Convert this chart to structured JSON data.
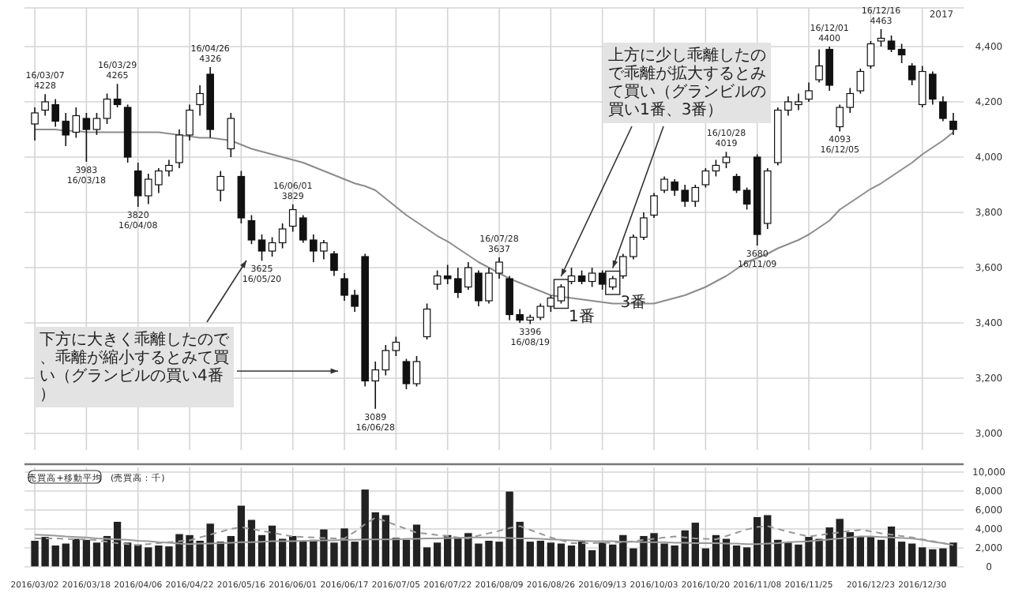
{
  "chart_data": [
    {
      "type": "candlestick",
      "categories": [
        "2016/03/02",
        null,
        null,
        null,
        null,
        "2016/03/18",
        null,
        null,
        null,
        null,
        "2016/04/06",
        null,
        null,
        null,
        null,
        "2016/04/22",
        null,
        null,
        null,
        null,
        "2016/05/16",
        null,
        null,
        null,
        null,
        "2016/06/01",
        null,
        null,
        null,
        null,
        "2016/06/17",
        null,
        null,
        null,
        null,
        "2016/07/05",
        null,
        null,
        null,
        null,
        "2016/07/22",
        null,
        null,
        null,
        null,
        "2016/08/09",
        null,
        null,
        null,
        null,
        "2016/08/26",
        null,
        null,
        null,
        null,
        "2016/09/13",
        null,
        null,
        null,
        null,
        "2016/10/03",
        null,
        null,
        null,
        null,
        "2016/10/20",
        null,
        null,
        null,
        null,
        "2016/11/08",
        null,
        null,
        null,
        null,
        "2016/11/25",
        null,
        null,
        null,
        null,
        null,
        "2016/12/23",
        null,
        null,
        null,
        null,
        "2016/12/30",
        null,
        null,
        null
      ],
      "ohlc": [
        [
          4120,
          4180,
          4060,
          4160
        ],
        [
          4170,
          4228,
          4150,
          4200
        ],
        [
          4190,
          4210,
          4110,
          4130
        ],
        [
          4130,
          4160,
          4040,
          4080
        ],
        [
          4090,
          4180,
          4070,
          4150
        ],
        [
          4140,
          4160,
          3983,
          4100
        ],
        [
          4100,
          4160,
          4080,
          4140
        ],
        [
          4140,
          4230,
          4120,
          4210
        ],
        [
          4210,
          4265,
          4180,
          4190
        ],
        [
          4180,
          4190,
          3980,
          4000
        ],
        [
          3950,
          3980,
          3820,
          3860
        ],
        [
          3860,
          3940,
          3830,
          3920
        ],
        [
          3900,
          3960,
          3870,
          3950
        ],
        [
          3950,
          3990,
          3930,
          3970
        ],
        [
          3980,
          4100,
          3960,
          4080
        ],
        [
          4080,
          4190,
          4060,
          4170
        ],
        [
          4190,
          4260,
          4150,
          4230
        ],
        [
          4300,
          4326,
          4070,
          4100
        ],
        [
          3880,
          3950,
          3840,
          3930
        ],
        [
          4030,
          4160,
          4000,
          4140
        ],
        [
          3930,
          3950,
          3760,
          3780
        ],
        [
          3770,
          3790,
          3685,
          3700
        ],
        [
          3700,
          3720,
          3625,
          3660
        ],
        [
          3660,
          3710,
          3640,
          3690
        ],
        [
          3690,
          3760,
          3670,
          3740
        ],
        [
          3750,
          3829,
          3730,
          3810
        ],
        [
          3780,
          3790,
          3690,
          3700
        ],
        [
          3700,
          3720,
          3620,
          3660
        ],
        [
          3660,
          3700,
          3630,
          3690
        ],
        [
          3650,
          3660,
          3570,
          3590
        ],
        [
          3560,
          3580,
          3480,
          3500
        ],
        [
          3500,
          3520,
          3440,
          3460
        ],
        [
          3640,
          3650,
          3170,
          3190
        ],
        [
          3190,
          3260,
          3089,
          3230
        ],
        [
          3230,
          3320,
          3210,
          3300
        ],
        [
          3300,
          3350,
          3280,
          3330
        ],
        [
          3260,
          3270,
          3160,
          3180
        ],
        [
          3180,
          3280,
          3170,
          3260
        ],
        [
          3350,
          3470,
          3340,
          3450
        ],
        [
          3540,
          3590,
          3520,
          3570
        ],
        [
          3570,
          3610,
          3540,
          3560
        ],
        [
          3560,
          3600,
          3490,
          3510
        ],
        [
          3530,
          3620,
          3520,
          3600
        ],
        [
          3580,
          3590,
          3460,
          3480
        ],
        [
          3480,
          3600,
          3470,
          3580
        ],
        [
          3580,
          3637,
          3560,
          3620
        ],
        [
          3560,
          3570,
          3410,
          3430
        ],
        [
          3430,
          3450,
          3400,
          3410
        ],
        [
          3410,
          3430,
          3396,
          3420
        ],
        [
          3420,
          3470,
          3410,
          3460
        ],
        [
          3460,
          3500,
          3440,
          3490
        ],
        [
          3480,
          3540,
          3470,
          3530
        ],
        [
          3550,
          3600,
          3540,
          3570
        ],
        [
          3570,
          3590,
          3540,
          3550
        ],
        [
          3550,
          3600,
          3530,
          3580
        ],
        [
          3580,
          3590,
          3520,
          3540
        ],
        [
          3530,
          3570,
          3520,
          3560
        ],
        [
          3570,
          3650,
          3560,
          3640
        ],
        [
          3640,
          3720,
          3630,
          3710
        ],
        [
          3710,
          3800,
          3700,
          3780
        ],
        [
          3790,
          3870,
          3780,
          3860
        ],
        [
          3880,
          3930,
          3870,
          3920
        ],
        [
          3910,
          3920,
          3860,
          3880
        ],
        [
          3880,
          3900,
          3820,
          3840
        ],
        [
          3840,
          3900,
          3820,
          3890
        ],
        [
          3900,
          3960,
          3890,
          3950
        ],
        [
          3950,
          3990,
          3930,
          3970
        ],
        [
          3980,
          4019,
          3960,
          4000
        ],
        [
          3930,
          3940,
          3870,
          3880
        ],
        [
          3880,
          3890,
          3810,
          3830
        ],
        [
          4000,
          4010,
          3680,
          3720
        ],
        [
          3760,
          3960,
          3740,
          3950
        ],
        [
          3980,
          4180,
          3970,
          4170
        ],
        [
          4170,
          4220,
          4150,
          4200
        ],
        [
          4190,
          4230,
          4170,
          4200
        ],
        [
          4210,
          4270,
          4200,
          4240
        ],
        [
          4280,
          4390,
          4270,
          4330
        ],
        [
          4390,
          4400,
          4240,
          4260
        ],
        [
          4110,
          4190,
          4093,
          4180
        ],
        [
          4180,
          4250,
          4160,
          4230
        ],
        [
          4240,
          4320,
          4230,
          4310
        ],
        [
          4330,
          4420,
          4320,
          4410
        ],
        [
          4420,
          4463,
          4400,
          4430
        ],
        [
          4420,
          4440,
          4380,
          4390
        ],
        [
          4390,
          4410,
          4340,
          4370
        ],
        [
          4330,
          4340,
          4260,
          4280
        ],
        [
          4190,
          4330,
          4180,
          4310
        ],
        [
          4300,
          4310,
          4190,
          4210
        ],
        [
          4200,
          4220,
          4130,
          4140
        ],
        [
          4130,
          4160,
          4080,
          4100
        ]
      ],
      "series": [
        {
          "type": "line",
          "color": "#8c8c8c",
          "values": [
            4100,
            4100,
            4100,
            4095,
            4095,
            4090,
            4090,
            4090,
            4090,
            4090,
            4090,
            4090,
            4090,
            4085,
            4080,
            4075,
            4070,
            4070,
            4065,
            4060,
            4045,
            4030,
            4020,
            4010,
            4000,
            3990,
            3980,
            3965,
            3950,
            3935,
            3920,
            3905,
            3895,
            3880,
            3850,
            3820,
            3790,
            3765,
            3740,
            3715,
            3695,
            3670,
            3645,
            3620,
            3600,
            3580,
            3560,
            3545,
            3530,
            3515,
            3500,
            3495,
            3490,
            3485,
            3480,
            3475,
            3470,
            3470,
            3470,
            3470,
            3470,
            3480,
            3490,
            3500,
            3515,
            3530,
            3550,
            3570,
            3595,
            3620,
            3635,
            3650,
            3670,
            3685,
            3700,
            3720,
            3745,
            3770,
            3810,
            3835,
            3860,
            3885,
            3905,
            3930,
            3955,
            3980,
            4010,
            4035,
            4060,
            4090
          ]
        }
      ],
      "ylim": [
        2940,
        4540
      ],
      "yticks": [
        {
          "value": 3000,
          "label": "3,000"
        },
        {
          "value": 3200,
          "label": "3,200"
        },
        {
          "value": 3400,
          "label": "3,400"
        },
        {
          "value": 3600,
          "label": "3,600"
        },
        {
          "value": 3800,
          "label": "3,800"
        },
        {
          "value": 4000,
          "label": "4,000"
        },
        {
          "value": 4200,
          "label": "4,200"
        },
        {
          "value": 4400,
          "label": "4,400"
        }
      ],
      "tick_labels": "y",
      "grid": true,
      "annotations": [
        {
          "text": "16/03/07",
          "y": 4228
        },
        {
          "text": "4228",
          "y": 4228
        },
        {
          "text": "3983",
          "y": 3983
        },
        {
          "text": "16/03/18",
          "y": 3983
        },
        {
          "text": "16/03/29",
          "y": 4265
        },
        {
          "text": "4265",
          "y": 4265
        },
        {
          "text": "3820",
          "y": 3820
        },
        {
          "text": "16/04/08",
          "y": 3820
        },
        {
          "text": "16/04/26",
          "y": 4326
        },
        {
          "text": "4326",
          "y": 4326
        },
        {
          "text": "3625",
          "y": 3625
        },
        {
          "text": "16/05/20",
          "y": 3625
        },
        {
          "text": "16/06/01",
          "y": 3829
        },
        {
          "text": "3829",
          "y": 3829
        },
        {
          "text": "3089",
          "y": 3089
        },
        {
          "text": "16/06/28",
          "y": 3089
        },
        {
          "text": "16/07/28",
          "y": 3637
        },
        {
          "text": "3637",
          "y": 3637
        },
        {
          "text": "3396",
          "y": 3396
        },
        {
          "text": "16/08/19",
          "y": 3396
        },
        {
          "text": "16/10/28",
          "y": 4019
        },
        {
          "text": "4019",
          "y": 4019
        },
        {
          "text": "3680",
          "y": 3680
        },
        {
          "text": "16/11/09",
          "y": 3680
        },
        {
          "text": "16/12/01",
          "y": 4400
        },
        {
          "text": "4400",
          "y": 4400
        },
        {
          "text": "4093",
          "y": 4093
        },
        {
          "text": "16/12/05",
          "y": 4093
        },
        {
          "text": "16/12/16",
          "y": 4463
        },
        {
          "text": "4463",
          "y": 4463
        },
        "1番",
        "3番",
        "2017",
        "下方に大きく乖離したので、乖離が縮小するとみて買い（グランビルの買い4番）",
        "上方に少し乖離したので乖離が拡大するとみて買い（グランビルの買い1番、3番）"
      ]
    },
    {
      "type": "bar",
      "color": "#222222",
      "categories": [
        "2016/03/02",
        null,
        null,
        null,
        null,
        "2016/03/18",
        null,
        null,
        null,
        null,
        "2016/04/06",
        null,
        null,
        null,
        null,
        "2016/04/22",
        null,
        null,
        null,
        null,
        "2016/05/16",
        null,
        null,
        null,
        null,
        "2016/06/01",
        null,
        null,
        null,
        null,
        "2016/06/17",
        null,
        null,
        null,
        null,
        "2016/07/05",
        null,
        null,
        null,
        null,
        "2016/07/22",
        null,
        null,
        null,
        null,
        "2016/08/09",
        null,
        null,
        null,
        null,
        "2016/08/26",
        null,
        null,
        null,
        null,
        "2016/09/13",
        null,
        null,
        null,
        null,
        "2016/10/03",
        null,
        null,
        null,
        null,
        "2016/10/20",
        null,
        null,
        null,
        null,
        "2016/11/08",
        null,
        null,
        null,
        null,
        "2016/11/25",
        null,
        null,
        null,
        null,
        null,
        "2016/12/23",
        null,
        null,
        null,
        null,
        "2016/12/30",
        null,
        null,
        null
      ],
      "values": [
        2800,
        3200,
        2300,
        2500,
        3000,
        2900,
        2600,
        3300,
        4800,
        2600,
        2400,
        2100,
        2300,
        2200,
        3500,
        3400,
        2800,
        4600,
        2700,
        3300,
        6500,
        5000,
        3400,
        4400,
        3000,
        3300,
        2700,
        2900,
        4000,
        2600,
        4100,
        2700,
        8200,
        5800,
        5500,
        3100,
        2900,
        4500,
        2100,
        2600,
        3400,
        3100,
        3600,
        2500,
        2800,
        2700,
        8000,
        4800,
        2700,
        2800,
        2600,
        2500,
        2300,
        2700,
        1800,
        2600,
        2400,
        3400,
        2000,
        3300,
        3600,
        2500,
        2300,
        3900,
        4700,
        2000,
        3400,
        3000,
        2300,
        2100,
        5300,
        5500,
        2900,
        2600,
        2400,
        3200,
        3000,
        4200,
        5100,
        3700,
        3300,
        3200,
        2900,
        4300,
        2700,
        2500,
        2100,
        1900,
        2000,
        2600
      ],
      "series": [
        {
          "type": "line",
          "color": "#999999",
          "values": [
            3400,
            3350,
            3300,
            3200,
            3150,
            3100,
            3000,
            2950,
            2900,
            2850,
            2750,
            2700,
            2600,
            2550,
            2450,
            2400,
            2450,
            2450,
            2500,
            2550,
            2600,
            2600,
            2650,
            2700,
            2700,
            2700,
            2750,
            2750,
            2800,
            2800,
            2850,
            2850,
            2900,
            2900,
            2900,
            2900,
            2950,
            2950,
            3000,
            3000,
            3050,
            3050,
            3100,
            3100,
            3100,
            3100,
            3050,
            3000,
            3000,
            2950,
            2900,
            2850,
            2800,
            2750,
            2700,
            2700,
            2700,
            2650,
            2650,
            2600,
            2600,
            2600,
            2550,
            2550,
            2500,
            2500,
            2500,
            2450,
            2450,
            2400,
            2400,
            2450,
            2500,
            2600,
            2650,
            2700,
            2800,
            2900,
            3000,
            3100,
            3200,
            3200,
            3150,
            3100,
            3050,
            3000,
            2850,
            2650,
            2500,
            2300
          ]
        },
        {
          "type": "line",
          "color": "#999999",
          "line_style": "dashed",
          "values": [
            3000,
            3000,
            3000,
            2950,
            2900,
            2900,
            2800,
            2650,
            2500,
            2400,
            2300,
            2400,
            2500,
            2600,
            2700,
            2800,
            3100,
            3400,
            3700,
            4000,
            4200,
            4000,
            3800,
            3600,
            3400,
            3200,
            3150,
            3100,
            3050,
            3000,
            3000,
            3700,
            4500,
            5200,
            4800,
            4400,
            4000,
            3600,
            3500,
            3350,
            3250,
            3100,
            3000,
            3300,
            3550,
            3800,
            4100,
            4300,
            3900,
            3500,
            3100,
            2800,
            2500,
            2500,
            2500,
            2550,
            2550,
            2600,
            2700,
            2850,
            2950,
            3100,
            3200,
            3100,
            3000,
            2950,
            2900,
            3250,
            3600,
            3950,
            4200,
            4300,
            4000,
            3700,
            3450,
            3200,
            3350,
            3500,
            3650,
            3800,
            3900,
            3750,
            3550,
            3400,
            3250,
            3100,
            2900,
            2700,
            2500,
            2300
          ]
        }
      ],
      "ylim": [
        0,
        10500
      ],
      "yticks": [
        {
          "value": 0,
          "label": "0"
        },
        {
          "value": 2000,
          "label": "2,000"
        },
        {
          "value": 4000,
          "label": "4,000"
        },
        {
          "value": 6000,
          "label": "6,000"
        },
        {
          "value": 8000,
          "label": "8,000"
        },
        {
          "value": 10000,
          "label": "10,000"
        }
      ],
      "grid": true,
      "annotations": [
        "売買高+移動平均",
        "(売買高：千)"
      ]
    }
  ]
}
